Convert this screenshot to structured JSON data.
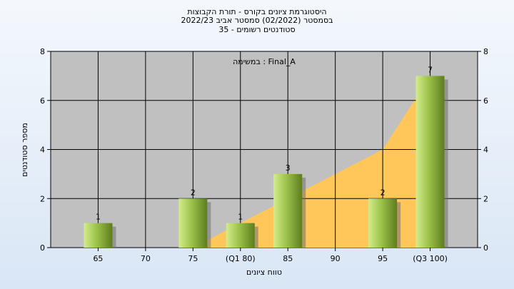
{
  "chart_data": {
    "type": "bar",
    "title_lines": [
      "היסטוגרמת ציונים בקורס - תורת הקבוצות",
      "בסמסטר  (02/2022)  סמסטר אביב 2022/23",
      "סטודנטים רשומים - 35"
    ],
    "annotation": "במשימה : Final_A",
    "xlabel": "טווח ציונים",
    "ylabel": "מספר סטודנטים",
    "categories": [
      "65",
      "70",
      "75",
      "(Q1 80)",
      "85",
      "90",
      "95",
      "(Q3 100)"
    ],
    "values": [
      1,
      0,
      2,
      1,
      3,
      0,
      2,
      7
    ],
    "bar_labels": [
      "1",
      "",
      "2",
      "1",
      "3",
      "",
      "2",
      "7"
    ],
    "cumulative_area": {
      "x": [
        "70",
        "75",
        "(Q1 80)",
        "85",
        "90",
        "95",
        "(Q3 100)"
      ],
      "y": [
        0,
        0,
        1,
        2,
        3,
        4,
        7
      ]
    },
    "ylim": [
      0,
      8
    ],
    "yticks": [
      0,
      2,
      4,
      6,
      8
    ],
    "grid": true,
    "colors": {
      "plot_bg": "#c0c0c0",
      "bar_light": "#d4ec8c",
      "bar_dark": "#5e7c1e",
      "area": "#ffc75a",
      "grid": "#000000"
    }
  }
}
